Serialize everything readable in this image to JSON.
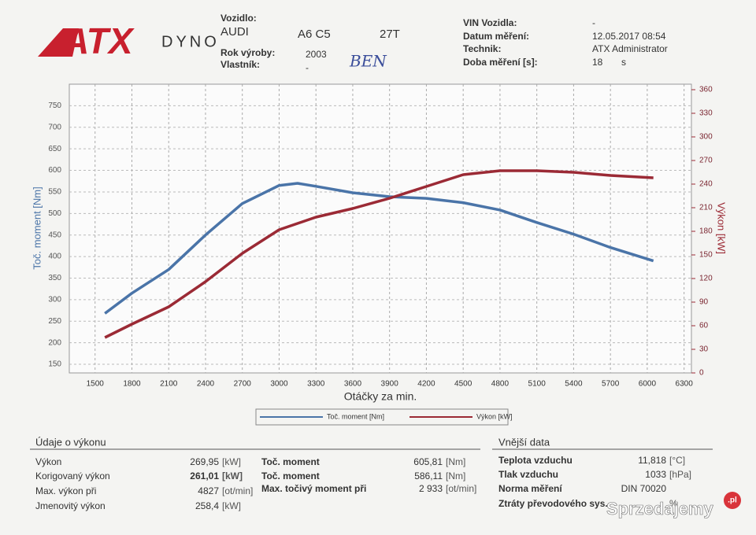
{
  "header": {
    "logo": {
      "brand": "ATX",
      "sub": "DYNO"
    },
    "vehicle": {
      "label": "Vozidlo:",
      "make": "AUDI",
      "model": "A6 C5",
      "engine": "27T",
      "year_label": "Rok výroby:",
      "year": "2003",
      "owner_label": "Vlastník:",
      "owner": "-",
      "owner_note": "BEN"
    },
    "measurement": {
      "vin_label": "VIN Vozidla:",
      "vin": "-",
      "date_label": "Datum měření:",
      "date": "12.05.2017 08:54",
      "tech_label": "Technik:",
      "tech": "ATX Administrator",
      "duration_label": "Doba měření [s]:",
      "duration": "18",
      "duration_unit": "s"
    }
  },
  "chart_data": {
    "type": "line",
    "x_label": "Otáčky za min.",
    "y_label": "Toč. moment [Nm]",
    "y2_label": "Výkon [kW]",
    "grid": true,
    "xlim": [
      1290,
      6360
    ],
    "xticks": [
      1500,
      1800,
      2100,
      2400,
      2700,
      3000,
      3300,
      3600,
      3900,
      4200,
      4500,
      4800,
      5100,
      5400,
      5700,
      6000,
      6300
    ],
    "ylim": [
      130,
      800
    ],
    "yticks": [
      150,
      200,
      250,
      300,
      350,
      400,
      450,
      500,
      550,
      600,
      650,
      700,
      750
    ],
    "y2lim": [
      0,
      367
    ],
    "y2ticks": [
      0,
      30,
      60,
      90,
      120,
      150,
      180,
      210,
      240,
      270,
      300,
      330,
      360
    ],
    "x": [
      1580,
      1800,
      2100,
      2400,
      2700,
      3000,
      3150,
      3300,
      3600,
      3900,
      4200,
      4500,
      4800,
      5100,
      5400,
      5700,
      6050
    ],
    "series": [
      {
        "name": "Toč. moment [Nm]",
        "color": "#4a74a8",
        "values": [
          268,
          315,
          370,
          450,
          523,
          565,
          570,
          563,
          548,
          539,
          535,
          525,
          508,
          479,
          452,
          421,
          390
        ]
      },
      {
        "name": "Výkon [kW]",
        "color": "#9b2a35",
        "axis": "y2",
        "values": [
          45,
          62,
          84,
          116,
          152,
          182,
          190,
          198,
          209,
          222,
          237,
          252,
          257,
          257,
          255,
          251,
          248
        ]
      }
    ]
  },
  "performance": {
    "title": "Údaje o výkonu",
    "rows": [
      {
        "label": "Výkon",
        "value": "269,95",
        "unit": "[kW]"
      },
      {
        "label": "Korigovaný výkon",
        "value": "261,01",
        "unit": "[kW]"
      },
      {
        "label": "Max. výkon při",
        "value": "4827",
        "unit": "[ot/min]"
      },
      {
        "label": "Jmenovitý výkon",
        "value": "258,4",
        "unit": "[kW]"
      }
    ],
    "torque_rows": [
      {
        "label": "Toč. moment",
        "value": "605,81",
        "unit": "[Nm]"
      },
      {
        "label": "Toč. moment",
        "value": "586,11",
        "unit": "[Nm]"
      },
      {
        "label": "Max. točivý moment při",
        "value": "2 933",
        "unit": "[ot/min]"
      }
    ]
  },
  "external": {
    "title": "Vnější data",
    "rows": [
      {
        "label": "Teplota vzduchu",
        "value": "11,818",
        "unit": "[°C]"
      },
      {
        "label": "Tlak vzduchu",
        "value": "1033",
        "unit": "[hPa]"
      },
      {
        "label": "Norma měření",
        "value": "DIN 70020"
      },
      {
        "label": "Ztráty převodového sys.",
        "unit": "%"
      }
    ]
  },
  "watermark": {
    "text": "Sprzedajemy",
    "badge": ".pl"
  }
}
